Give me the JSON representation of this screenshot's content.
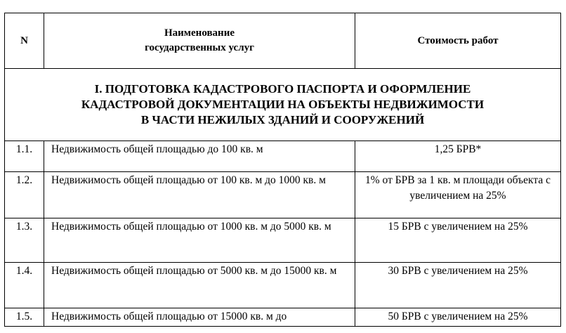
{
  "header": {
    "num": "N",
    "name": "Наименование\nгосударственных услуг",
    "cost": "Стоимость работ"
  },
  "section": {
    "title": "I. ПОДГОТОВКА КАДАСТРОВОГО ПАСПОРТА И ОФОРМЛЕНИЕ\nКАДАСТРОВОЙ ДОКУМЕНТАЦИИ НА ОБЪЕКТЫ НЕДВИЖИМОСТИ\nВ ЧАСТИ НЕЖИЛЫХ ЗДАНИЙ И СООРУЖЕНИЙ"
  },
  "rows": [
    {
      "num": "1.1.",
      "name": "Недвижимость общей площадью до 100 кв. м",
      "cost": "1,25 БРВ*"
    },
    {
      "num": "1.2.",
      "name": "Недвижимость общей площадью от 100 кв. м до 1000 кв. м",
      "cost": "1% от БРВ за 1 кв. м площади объекта с увеличением на 25%"
    },
    {
      "num": "1.3.",
      "name": "Недвижимость общей площадью от 1000 кв. м до 5000 кв. м",
      "cost": "15 БРВ с увеличением на 25%"
    },
    {
      "num": "1.4.",
      "name": "Недвижимость общей площадью от 5000 кв. м до 15000 кв. м",
      "cost": "30 БРВ с увеличением на 25%"
    },
    {
      "num": "1.5.",
      "name": "Недвижимость общей площадью от 15000 кв. м до",
      "cost": "50 БРВ с увеличением на 25%"
    }
  ]
}
